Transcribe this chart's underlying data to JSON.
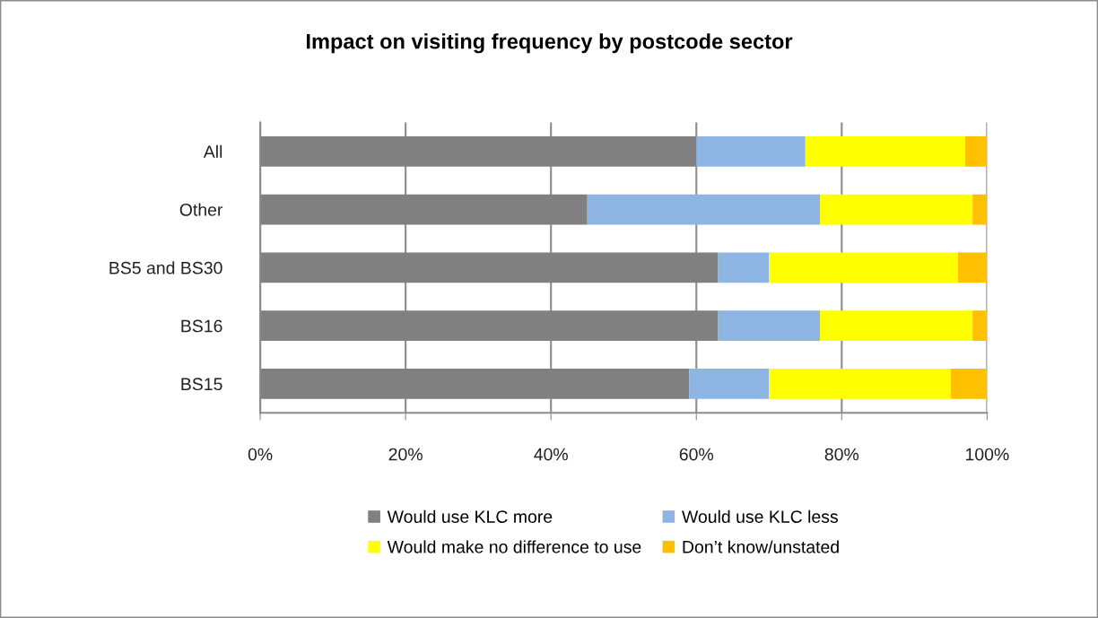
{
  "chart_data": {
    "type": "bar",
    "orientation": "horizontal",
    "stacked": true,
    "title": "Impact on visiting frequency by postcode sector",
    "categories": [
      "All",
      "Other",
      "BS5 and BS30",
      "BS16",
      "BS15"
    ],
    "series": [
      {
        "name": "Would use KLC more",
        "color": "#808080",
        "values": [
          60,
          45,
          63,
          63,
          59
        ]
      },
      {
        "name": "Would use KLC less",
        "color": "#8db4e2",
        "values": [
          15,
          32,
          7,
          14,
          11
        ]
      },
      {
        "name": "Would make no difference to use",
        "color": "#ffff00",
        "values": [
          22,
          21,
          26,
          21,
          25
        ]
      },
      {
        "name": "Don’t know/unstated",
        "color": "#ffc000",
        "values": [
          3,
          2,
          4,
          2,
          5
        ]
      }
    ],
    "xlim": [
      0,
      100
    ],
    "xticks": [
      {
        "value": 0,
        "label": "0%"
      },
      {
        "value": 20,
        "label": "20%"
      },
      {
        "value": 40,
        "label": "40%"
      },
      {
        "value": 60,
        "label": "60%"
      },
      {
        "value": 80,
        "label": "80%"
      },
      {
        "value": 100,
        "label": "100%"
      }
    ],
    "grid": "x",
    "legend": "bottom"
  }
}
